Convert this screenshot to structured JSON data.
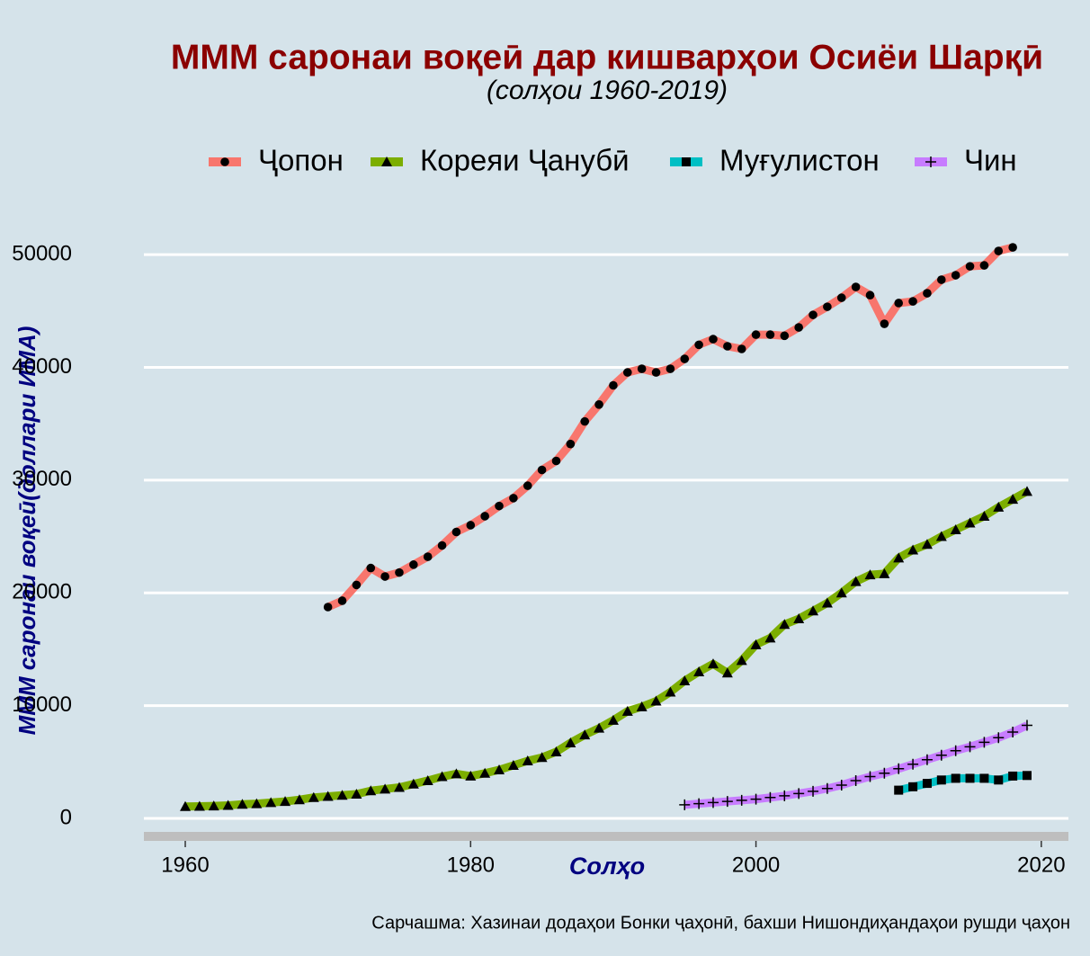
{
  "chart_data": {
    "type": "line",
    "title": "МММ саронаи воқеӣ дар кишварҳои Осиёи Шарқӣ",
    "subtitle": "(солҳои 1960-2019)",
    "x_label": "Солҳо",
    "y_label": "МММ саронаи воқеӣ(доллари ИМА)",
    "caption": "Сарчашма: Хазинаи додаҳои Бонки ҷаҳонӣ, бахши Нишондиҳандаҳои рушди ҷаҳон",
    "xlim": [
      1957.1,
      2021.9
    ],
    "xticks": [
      1960,
      1980,
      2000,
      2020
    ],
    "ylim": [
      -1600,
      52000
    ],
    "yticks": [
      0,
      10000,
      20000,
      30000,
      40000,
      50000
    ],
    "grid": true,
    "legend": "top",
    "series": [
      {
        "name": "Ҷопон",
        "color": "#f8766d",
        "marker": "circle",
        "x": [
          1970,
          1971,
          1972,
          1973,
          1974,
          1975,
          1976,
          1977,
          1978,
          1979,
          1980,
          1981,
          1982,
          1983,
          1984,
          1985,
          1986,
          1987,
          1988,
          1989,
          1990,
          1991,
          1992,
          1993,
          1994,
          1995,
          1996,
          1997,
          1998,
          1999,
          2000,
          2001,
          2002,
          2003,
          2004,
          2005,
          2006,
          2007,
          2008,
          2009,
          2010,
          2011,
          2012,
          2013,
          2014,
          2015,
          2016,
          2017,
          2018
        ],
        "values": [
          18740,
          19300,
          20700,
          22200,
          21450,
          21800,
          22500,
          23200,
          24200,
          25400,
          26000,
          26800,
          27700,
          28400,
          29500,
          30900,
          31700,
          33200,
          35200,
          36700,
          38400,
          39550,
          39870,
          39550,
          39870,
          40750,
          42000,
          42500,
          41870,
          41630,
          42900,
          42900,
          42800,
          43540,
          44650,
          45370,
          46170,
          47130,
          46400,
          43860,
          45700,
          45850,
          46570,
          47770,
          48170,
          48960,
          49040,
          50320,
          50640
        ]
      },
      {
        "name": "Кореяи Ҷанубӣ",
        "color": "#7cae00",
        "marker": "triangle",
        "x": [
          1960,
          1961,
          1962,
          1963,
          1964,
          1965,
          1966,
          1967,
          1968,
          1969,
          1970,
          1971,
          1972,
          1973,
          1974,
          1975,
          1976,
          1977,
          1978,
          1979,
          1980,
          1981,
          1982,
          1983,
          1984,
          1985,
          1986,
          1987,
          1988,
          1989,
          1990,
          1991,
          1992,
          1993,
          1994,
          1995,
          1996,
          1997,
          1998,
          1999,
          2000,
          2001,
          2002,
          2003,
          2004,
          2005,
          2006,
          2007,
          2008,
          2009,
          2010,
          2011,
          2012,
          2013,
          2014,
          2015,
          2016,
          2017,
          2018,
          2019
        ],
        "values": [
          1050,
          1070,
          1100,
          1150,
          1250,
          1300,
          1400,
          1500,
          1650,
          1850,
          1950,
          2050,
          2150,
          2450,
          2600,
          2750,
          3050,
          3350,
          3700,
          3950,
          3750,
          4000,
          4300,
          4700,
          5100,
          5400,
          5900,
          6700,
          7400,
          8000,
          8700,
          9500,
          9900,
          10400,
          11200,
          12200,
          13000,
          13700,
          12900,
          14000,
          15400,
          16000,
          17200,
          17700,
          18400,
          19100,
          20000,
          21000,
          21600,
          21700,
          23100,
          23800,
          24300,
          25000,
          25600,
          26200,
          26800,
          27600,
          28300,
          29000
        ]
      },
      {
        "name": "Муғулистон",
        "color": "#00bfc4",
        "marker": "square",
        "x": [
          2010,
          2011,
          2012,
          2013,
          2014,
          2015,
          2016,
          2017,
          2018,
          2019
        ],
        "values": [
          2500,
          2800,
          3100,
          3400,
          3550,
          3550,
          3550,
          3400,
          3750,
          3800
        ]
      },
      {
        "name": "Чин",
        "color": "#c77cff",
        "marker": "plus",
        "x": [
          1995,
          1996,
          1997,
          1998,
          1999,
          2000,
          2001,
          2002,
          2003,
          2004,
          2005,
          2006,
          2007,
          2008,
          2009,
          2010,
          2011,
          2012,
          2013,
          2014,
          2015,
          2016,
          2017,
          2018,
          2019
        ],
        "values": [
          1200,
          1300,
          1400,
          1500,
          1600,
          1700,
          1850,
          2000,
          2200,
          2400,
          2650,
          2950,
          3350,
          3700,
          4000,
          4400,
          4800,
          5200,
          5600,
          6000,
          6350,
          6750,
          7150,
          7650,
          8250
        ]
      }
    ]
  }
}
